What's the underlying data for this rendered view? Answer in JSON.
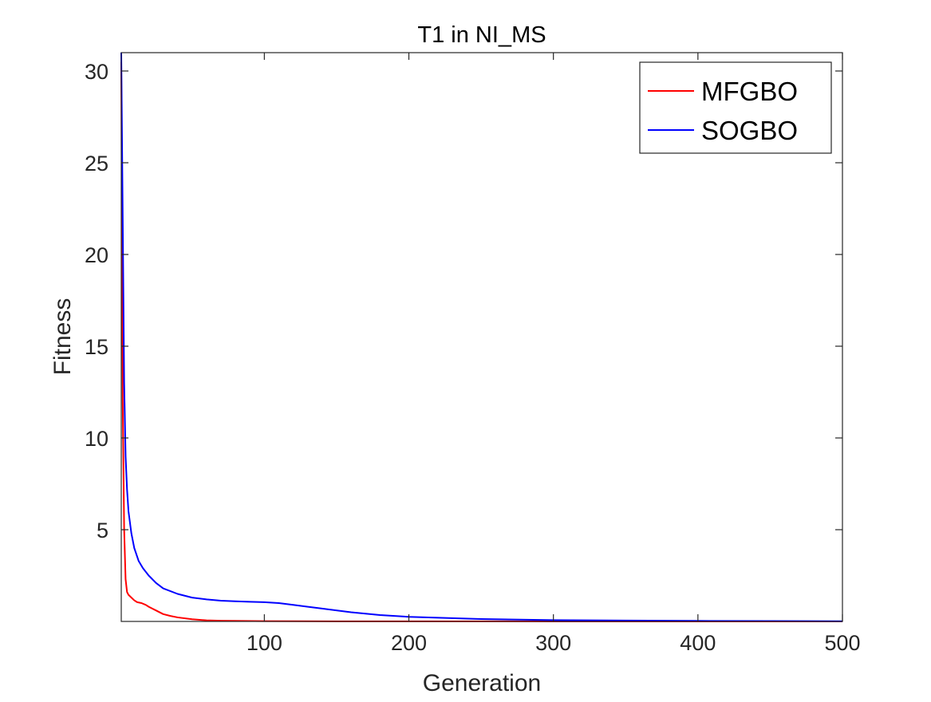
{
  "chart_data": {
    "type": "line",
    "title": "T1 in NI_MS",
    "xlabel": "Generation",
    "ylabel": "Fitness",
    "xlim": [
      1,
      500
    ],
    "ylim": [
      0,
      31
    ],
    "xticks": [
      100,
      200,
      300,
      400,
      500
    ],
    "yticks": [
      5,
      10,
      15,
      20,
      25,
      30
    ],
    "grid": false,
    "legend_position": "top-right",
    "series": [
      {
        "name": "MFGBO",
        "color": "#ff0000",
        "x": [
          1,
          2,
          3,
          4,
          5,
          6,
          8,
          10,
          12,
          15,
          18,
          20,
          25,
          30,
          35,
          40,
          50,
          60,
          70,
          80,
          100,
          150,
          200,
          300,
          400,
          500
        ],
        "y": [
          30.5,
          12.0,
          5.0,
          2.3,
          1.6,
          1.45,
          1.3,
          1.15,
          1.05,
          1.0,
          0.9,
          0.8,
          0.6,
          0.4,
          0.3,
          0.22,
          0.12,
          0.06,
          0.04,
          0.03,
          0.015,
          0.008,
          0.005,
          0.002,
          0.001,
          0.0005
        ]
      },
      {
        "name": "SOGBO",
        "color": "#0000ff",
        "x": [
          1,
          2,
          3,
          4,
          5,
          6,
          8,
          10,
          13,
          16,
          20,
          25,
          30,
          40,
          50,
          60,
          70,
          80,
          90,
          100,
          110,
          120,
          140,
          160,
          180,
          200,
          250,
          300,
          350,
          400,
          450,
          500
        ],
        "y": [
          31.0,
          22.0,
          13.0,
          9.0,
          7.2,
          6.0,
          4.8,
          4.0,
          3.3,
          2.9,
          2.5,
          2.1,
          1.8,
          1.5,
          1.3,
          1.2,
          1.13,
          1.1,
          1.07,
          1.05,
          1.0,
          0.9,
          0.7,
          0.5,
          0.35,
          0.25,
          0.13,
          0.07,
          0.05,
          0.03,
          0.02,
          0.01
        ]
      }
    ]
  }
}
